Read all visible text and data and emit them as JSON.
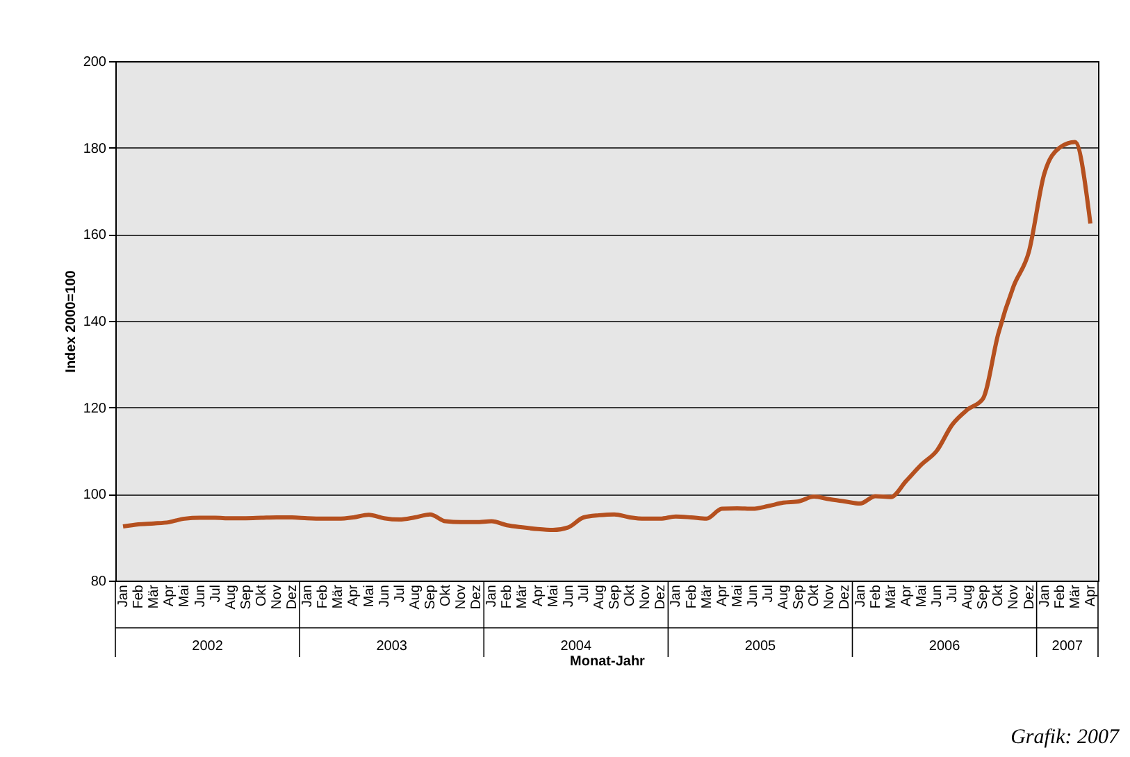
{
  "chart_data": {
    "type": "line",
    "ylabel": "Index 2000=100",
    "xlabel": "Monat-Jahr",
    "categories": [
      "Jan",
      "Feb",
      "Mär",
      "Apr",
      "Mai",
      "Jun",
      "Jul",
      "Aug",
      "Sep",
      "Okt",
      "Nov",
      "Dez",
      "Jan",
      "Feb",
      "Mär",
      "Apr",
      "Mai",
      "Jun",
      "Jul",
      "Aug",
      "Sep",
      "Okt",
      "Nov",
      "Dez",
      "Jan",
      "Feb",
      "Mär",
      "Apr",
      "Mai",
      "Jun",
      "Jul",
      "Aug",
      "Sep",
      "Okt",
      "Nov",
      "Dez",
      "Jan",
      "Feb",
      "Mär",
      "Apr",
      "Mai",
      "Jun",
      "Jul",
      "Aug",
      "Sep",
      "Okt",
      "Nov",
      "Dez",
      "Jan",
      "Feb",
      "Mär",
      "Apr",
      "Mai",
      "Jun",
      "Jul",
      "Aug",
      "Sep",
      "Okt",
      "Nov",
      "Dez",
      "Jan",
      "Feb",
      "Mär",
      "Apr"
    ],
    "series": [
      {
        "color": "#b5501f",
        "values": [
          92.5,
          93,
          93.2,
          93.5,
          94.3,
          94.5,
          94.5,
          94.4,
          94.4,
          94.5,
          94.6,
          94.6,
          94.4,
          94.3,
          94.3,
          94.6,
          95.2,
          94.4,
          94.1,
          94.6,
          95.3,
          93.7,
          93.5,
          93.5,
          93.7,
          92.8,
          92.3,
          91.9,
          91.7,
          92.3,
          94.6,
          95.1,
          95.3,
          94.6,
          94.3,
          94.3,
          94.8,
          94.6,
          94.3,
          96.6,
          96.7,
          96.6,
          97.2,
          98,
          98.3,
          99.4,
          98.8,
          98.3,
          97.8,
          99.5,
          99.3,
          103,
          106.8,
          110,
          116,
          119.5,
          122,
          137,
          148,
          156,
          174,
          180,
          181.3,
          162.5
        ]
      }
    ],
    "ylim": [
      80,
      200
    ],
    "yticks": [
      80,
      100,
      120,
      140,
      160,
      180,
      200
    ],
    "grid": "y",
    "annotations": [
      "2002",
      "2003",
      "2004",
      "2005",
      "2006",
      "2007",
      "Grafik: 2007"
    ]
  }
}
